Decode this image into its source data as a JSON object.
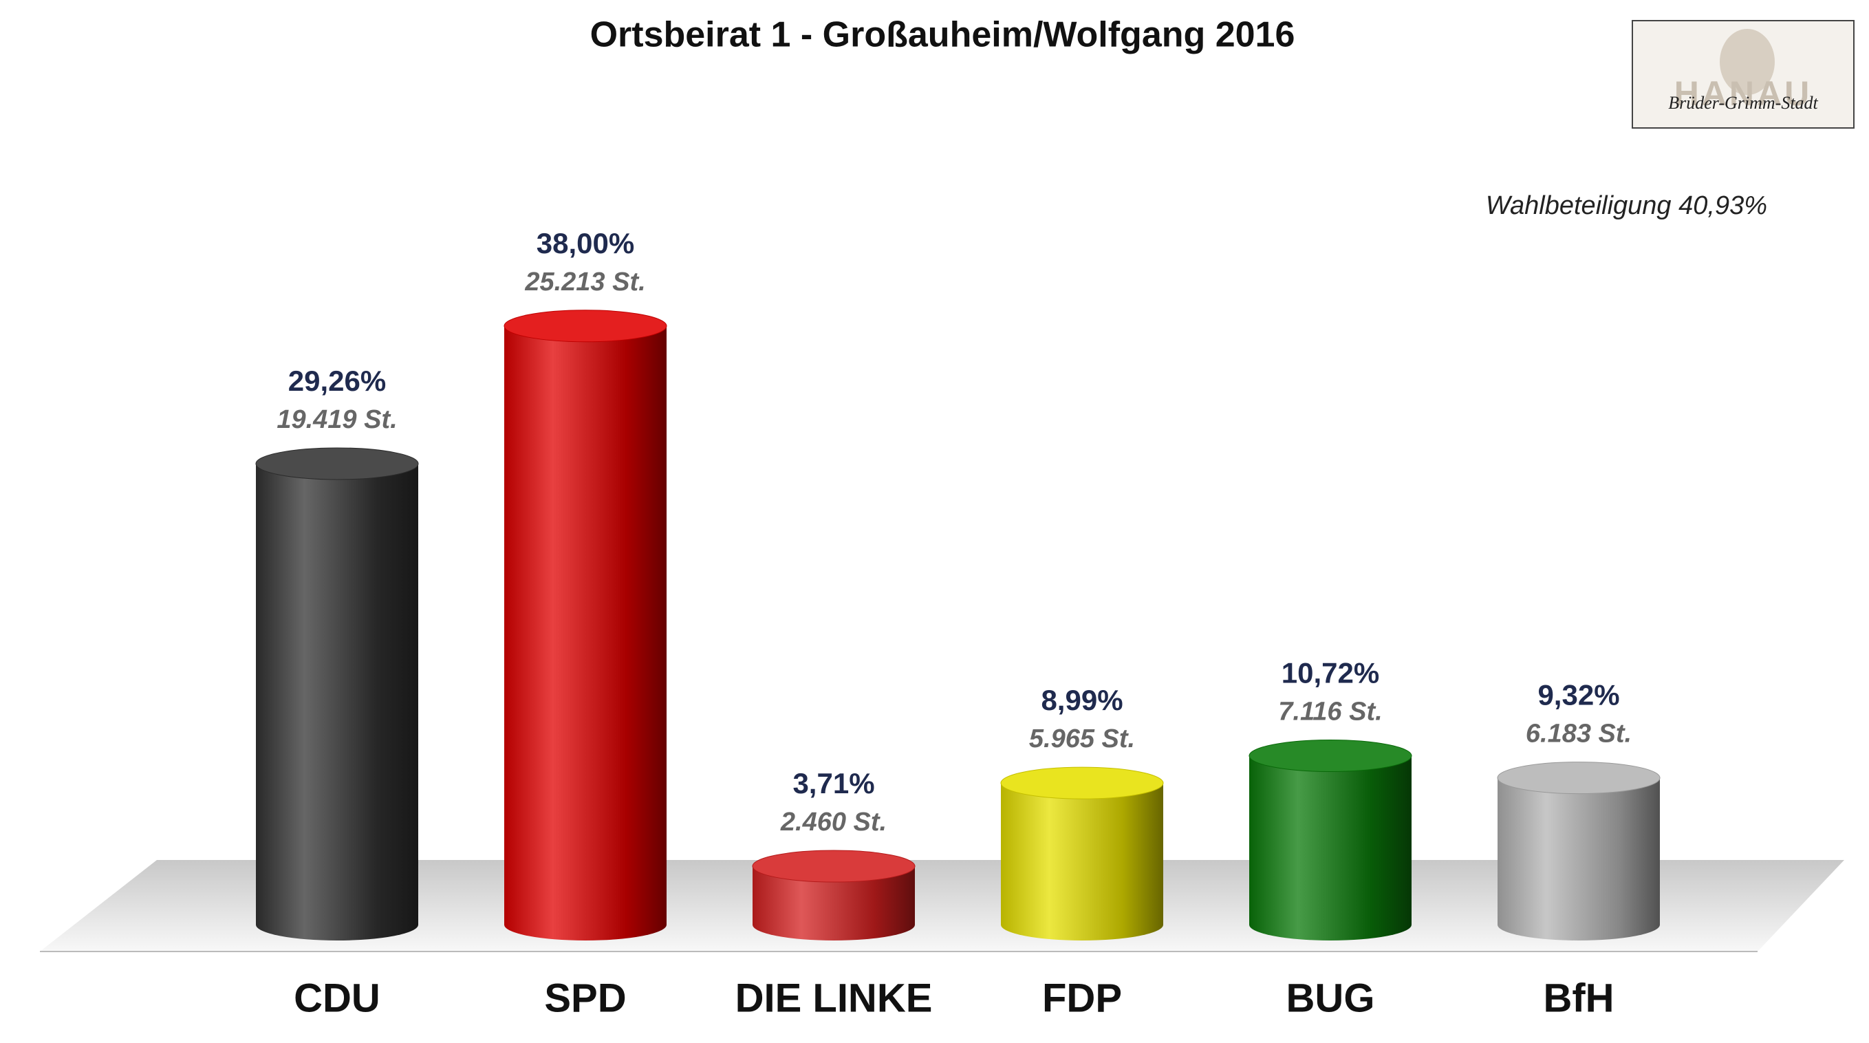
{
  "chart_data": {
    "type": "bar",
    "title": "Ortsbeirat 1 - Großauheim/Wolfgang 2016",
    "annotation": "Wahlbeteiligung 40,93%",
    "logo": {
      "text": "HANAU",
      "subtitle": "Brüder-Grimm-Stadt"
    },
    "categories": [
      "CDU",
      "SPD",
      "DIE LINKE",
      "FDP",
      "BUG",
      "BfH"
    ],
    "values": [
      29.26,
      38.0,
      3.71,
      8.99,
      10.72,
      9.32
    ],
    "value_labels": [
      "29,26%",
      "38,00%",
      "3,71%",
      "8,99%",
      "10,72%",
      "9,32%"
    ],
    "votes": [
      19419,
      25213,
      2460,
      5965,
      7116,
      6183
    ],
    "vote_labels": [
      "19.419 St.",
      "25.213 St.",
      "2.460 St.",
      "5.965 St.",
      "7.116 St.",
      "6.183 St."
    ],
    "colors": [
      "#333333",
      "#e00000",
      "#d42020",
      "#e6e000",
      "#0a7a0a",
      "#b4b4b4"
    ]
  }
}
